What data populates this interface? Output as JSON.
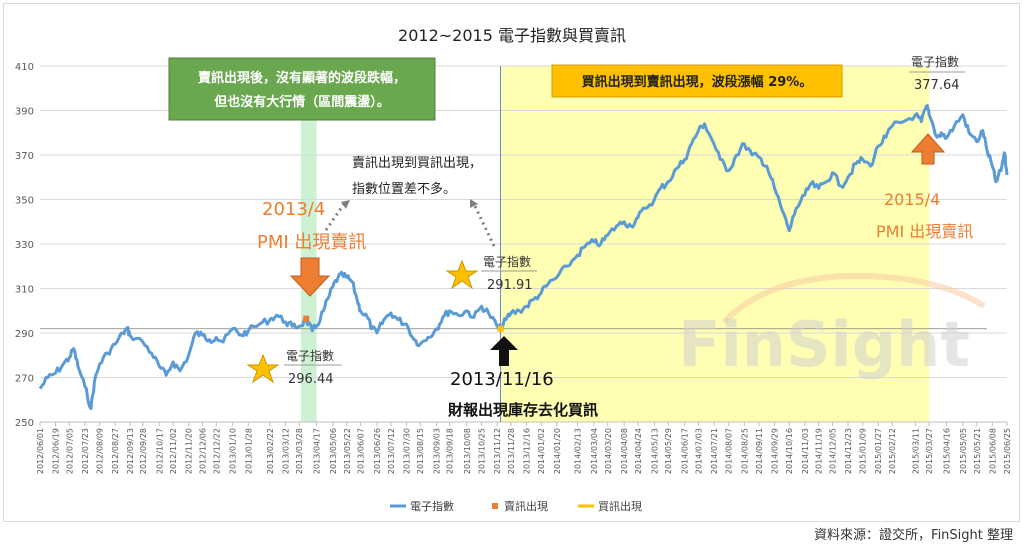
{
  "chart_data": {
    "type": "line",
    "title": "2012~2015 電子指數與買賣訊",
    "ylim": [
      250,
      410
    ],
    "yticks": [
      250,
      270,
      290,
      310,
      330,
      350,
      370,
      390,
      410
    ],
    "x_tick_labels": [
      "2012/06/01",
      "2012/06/19",
      "2012/07/05",
      "2012/07/23",
      "2012/08/09",
      "2012/08/27",
      "2012/09/13",
      "2012/09/28",
      "2012/10/17",
      "2012/11/02",
      "2012/11/20",
      "2012/12/06",
      "2012/12/22",
      "2013/01/10",
      "2013/01/28",
      "2013/02/22",
      "2013/03/12",
      "2013/03/28",
      "2013/04/17",
      "2013/05/06",
      "2013/05/22",
      "2013/06/07",
      "2013/06/26",
      "2013/07/12",
      "2013/07/30",
      "2013/08/15",
      "2013/09/03",
      "2013/09/18",
      "2013/10/08",
      "2013/10/25",
      "2013/11/12",
      "2013/11/28",
      "2013/12/16",
      "2014/01/02",
      "2014/01/20",
      "2014/02/13",
      "2014/03/04",
      "2014/03/20",
      "2014/04/08",
      "2014/04/24",
      "2014/05/13",
      "2014/05/29",
      "2014/06/17",
      "2014/07/03",
      "2014/07/21",
      "2014/08/07",
      "2014/08/25",
      "2014/09/11",
      "2014/09/29",
      "2014/10/16",
      "2014/11/03",
      "2014/11/19",
      "2014/12/05",
      "2014/12/23",
      "2015/01/09",
      "2015/01/27",
      "2015/02/12",
      "2015/03/11",
      "2015/03/27",
      "2015/04/16",
      "2015/05/05",
      "2015/05/21",
      "2015/06/08",
      "2015/06/25"
    ],
    "series": [
      {
        "name": "電子指數",
        "color": "#5b9bd5",
        "values": [
          {
            "x": "2012/06/01",
            "y": 265
          },
          {
            "x": "2012/06/10",
            "y": 270
          },
          {
            "x": "2012/06/19",
            "y": 272
          },
          {
            "x": "2012/06/28",
            "y": 276
          },
          {
            "x": "2012/07/05",
            "y": 279
          },
          {
            "x": "2012/07/10",
            "y": 283
          },
          {
            "x": "2012/07/15",
            "y": 275
          },
          {
            "x": "2012/07/23",
            "y": 266
          },
          {
            "x": "2012/07/30",
            "y": 256
          },
          {
            "x": "2012/08/03",
            "y": 268
          },
          {
            "x": "2012/08/09",
            "y": 276
          },
          {
            "x": "2012/08/18",
            "y": 281
          },
          {
            "x": "2012/08/27",
            "y": 285
          },
          {
            "x": "2012/09/05",
            "y": 290
          },
          {
            "x": "2012/09/10",
            "y": 292
          },
          {
            "x": "2012/09/13",
            "y": 289
          },
          {
            "x": "2012/09/28",
            "y": 286
          },
          {
            "x": "2012/10/08",
            "y": 281
          },
          {
            "x": "2012/10/17",
            "y": 275
          },
          {
            "x": "2012/10/25",
            "y": 271
          },
          {
            "x": "2012/11/02",
            "y": 277
          },
          {
            "x": "2012/11/10",
            "y": 273
          },
          {
            "x": "2012/11/20",
            "y": 280
          },
          {
            "x": "2012/11/28",
            "y": 290
          },
          {
            "x": "2012/12/06",
            "y": 289
          },
          {
            "x": "2012/12/14",
            "y": 287
          },
          {
            "x": "2012/12/22",
            "y": 288
          },
          {
            "x": "2012/12/30",
            "y": 286
          },
          {
            "x": "2013/01/10",
            "y": 292
          },
          {
            "x": "2013/01/20",
            "y": 289
          },
          {
            "x": "2013/01/28",
            "y": 291
          },
          {
            "x": "2013/02/10",
            "y": 294
          },
          {
            "x": "2013/02/22",
            "y": 296
          },
          {
            "x": "2013/03/02",
            "y": 298
          },
          {
            "x": "2013/03/12",
            "y": 295
          },
          {
            "x": "2013/03/20",
            "y": 293
          },
          {
            "x": "2013/03/28",
            "y": 293
          },
          {
            "x": "2013/04/05",
            "y": 296
          },
          {
            "x": "2013/04/12",
            "y": 291
          },
          {
            "x": "2013/04/17",
            "y": 293
          },
          {
            "x": "2013/04/25",
            "y": 300
          },
          {
            "x": "2013/05/01",
            "y": 306
          },
          {
            "x": "2013/05/06",
            "y": 311
          },
          {
            "x": "2013/05/12",
            "y": 315
          },
          {
            "x": "2013/05/17",
            "y": 316
          },
          {
            "x": "2013/05/22",
            "y": 315
          },
          {
            "x": "2013/05/28",
            "y": 313
          },
          {
            "x": "2013/06/03",
            "y": 305
          },
          {
            "x": "2013/06/07",
            "y": 300
          },
          {
            "x": "2013/06/15",
            "y": 297
          },
          {
            "x": "2013/06/20",
            "y": 292
          },
          {
            "x": "2013/06/26",
            "y": 290
          },
          {
            "x": "2013/07/04",
            "y": 296
          },
          {
            "x": "2013/07/12",
            "y": 299
          },
          {
            "x": "2013/07/20",
            "y": 296
          },
          {
            "x": "2013/07/30",
            "y": 294
          },
          {
            "x": "2013/08/08",
            "y": 287
          },
          {
            "x": "2013/08/15",
            "y": 285
          },
          {
            "x": "2013/08/24",
            "y": 288
          },
          {
            "x": "2013/09/03",
            "y": 292
          },
          {
            "x": "2013/09/10",
            "y": 297
          },
          {
            "x": "2013/09/18",
            "y": 300
          },
          {
            "x": "2013/09/28",
            "y": 298
          },
          {
            "x": "2013/10/08",
            "y": 300
          },
          {
            "x": "2013/10/16",
            "y": 297
          },
          {
            "x": "2013/10/25",
            "y": 302
          },
          {
            "x": "2013/11/02",
            "y": 299
          },
          {
            "x": "2013/11/12",
            "y": 293
          },
          {
            "x": "2013/11/16",
            "y": 291.91
          },
          {
            "x": "2013/11/22",
            "y": 296
          },
          {
            "x": "2013/11/28",
            "y": 299
          },
          {
            "x": "2013/12/08",
            "y": 300
          },
          {
            "x": "2013/12/16",
            "y": 302
          },
          {
            "x": "2013/12/24",
            "y": 305
          },
          {
            "x": "2014/01/02",
            "y": 308
          },
          {
            "x": "2014/01/10",
            "y": 312
          },
          {
            "x": "2014/01/20",
            "y": 315
          },
          {
            "x": "2014/02/01",
            "y": 320
          },
          {
            "x": "2014/02/13",
            "y": 325
          },
          {
            "x": "2014/02/22",
            "y": 329
          },
          {
            "x": "2014/03/04",
            "y": 331
          },
          {
            "x": "2014/03/12",
            "y": 330
          },
          {
            "x": "2014/03/20",
            "y": 334
          },
          {
            "x": "2014/03/30",
            "y": 338
          },
          {
            "x": "2014/04/08",
            "y": 340
          },
          {
            "x": "2014/04/16",
            "y": 338
          },
          {
            "x": "2014/04/24",
            "y": 342
          },
          {
            "x": "2014/05/02",
            "y": 346
          },
          {
            "x": "2014/05/13",
            "y": 350
          },
          {
            "x": "2014/05/20",
            "y": 355
          },
          {
            "x": "2014/05/29",
            "y": 358
          },
          {
            "x": "2014/06/08",
            "y": 364
          },
          {
            "x": "2014/06/17",
            "y": 368
          },
          {
            "x": "2014/06/25",
            "y": 375
          },
          {
            "x": "2014/07/03",
            "y": 381
          },
          {
            "x": "2014/07/10",
            "y": 384
          },
          {
            "x": "2014/07/21",
            "y": 375
          },
          {
            "x": "2014/07/28",
            "y": 368
          },
          {
            "x": "2014/08/07",
            "y": 363
          },
          {
            "x": "2014/08/16",
            "y": 370
          },
          {
            "x": "2014/08/25",
            "y": 375
          },
          {
            "x": "2014/09/03",
            "y": 370
          },
          {
            "x": "2014/09/11",
            "y": 369
          },
          {
            "x": "2014/09/20",
            "y": 365
          },
          {
            "x": "2014/09/29",
            "y": 355
          },
          {
            "x": "2014/10/08",
            "y": 345
          },
          {
            "x": "2014/10/16",
            "y": 336
          },
          {
            "x": "2014/10/24",
            "y": 346
          },
          {
            "x": "2014/11/03",
            "y": 352
          },
          {
            "x": "2014/11/10",
            "y": 357
          },
          {
            "x": "2014/11/19",
            "y": 355
          },
          {
            "x": "2014/11/28",
            "y": 358
          },
          {
            "x": "2014/12/05",
            "y": 362
          },
          {
            "x": "2014/12/15",
            "y": 356
          },
          {
            "x": "2014/12/23",
            "y": 360
          },
          {
            "x": "2015/01/01",
            "y": 366
          },
          {
            "x": "2015/01/09",
            "y": 368
          },
          {
            "x": "2015/01/18",
            "y": 365
          },
          {
            "x": "2015/01/27",
            "y": 374
          },
          {
            "x": "2015/02/05",
            "y": 378
          },
          {
            "x": "2015/02/12",
            "y": 383
          },
          {
            "x": "2015/02/25",
            "y": 385
          },
          {
            "x": "2015/03/11",
            "y": 388
          },
          {
            "x": "2015/03/18",
            "y": 385
          },
          {
            "x": "2015/03/24",
            "y": 392
          },
          {
            "x": "2015/03/27",
            "y": 388
          },
          {
            "x": "2015/04/05",
            "y": 378
          },
          {
            "x": "2015/04/10",
            "y": 380
          },
          {
            "x": "2015/04/16",
            "y": 377.64
          },
          {
            "x": "2015/04/25",
            "y": 383
          },
          {
            "x": "2015/05/05",
            "y": 388
          },
          {
            "x": "2015/05/12",
            "y": 380
          },
          {
            "x": "2015/05/21",
            "y": 376
          },
          {
            "x": "2015/05/28",
            "y": 381
          },
          {
            "x": "2015/06/02",
            "y": 372
          },
          {
            "x": "2015/06/08",
            "y": 365
          },
          {
            "x": "2015/06/12",
            "y": 358
          },
          {
            "x": "2015/06/18",
            "y": 363
          },
          {
            "x": "2015/06/22",
            "y": 371
          },
          {
            "x": "2015/06/25",
            "y": 361
          }
        ]
      }
    ],
    "signals": [
      {
        "name": "賣訊出現",
        "type": "sell",
        "color": "#ed7d31",
        "x": "2013/04/05",
        "y": 296.44
      },
      {
        "name": "買訊出現",
        "type": "buy",
        "color": "#ffc000",
        "x": "2013/11/16",
        "y": 291.91
      }
    ],
    "legend": [
      "電子指數",
      "賣訊出現",
      "買訊出現"
    ],
    "legend_position": "bottom",
    "grid": true
  },
  "annotations": {
    "green_box": [
      "賣訊出現後，沒有顯著的波段跌幅，",
      "但也沒有大行情（區間震盪）。"
    ],
    "yellow_box": "買訊出現到賣訊出現，波段漲幅 29%。",
    "middle_note": [
      "賣訊出現到買訊出現，",
      "指數位置差不多。"
    ],
    "sell_2013": [
      "2013/4",
      "PMI 出現賣訊"
    ],
    "buy_2013": [
      "2013/11/16",
      "財報出現庫存去化買訊"
    ],
    "sell_2015": [
      "2015/4",
      "PMI 出現賣訊"
    ],
    "callout_1": {
      "label": "電子指數",
      "value": "296.44"
    },
    "callout_2": {
      "label": "電子指數",
      "value": "291.91"
    },
    "callout_3": {
      "label": "電子指數",
      "value": "377.64"
    }
  },
  "watermark": "FinSight",
  "source": "資料來源：證交所，FinSight 整理",
  "colors": {
    "green": "#6aa84f",
    "yellow": "#ffff99",
    "orange": "#ed7d31",
    "gold": "#ffc000",
    "line": "#5b9bd5"
  }
}
